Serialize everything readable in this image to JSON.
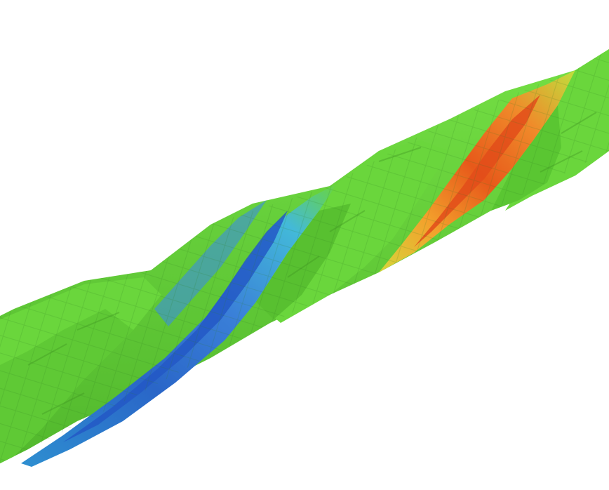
{
  "scene": {
    "subject": "twisted-beam-contour-plot",
    "background_color": "#ffffff",
    "colors": {
      "green": "#6ad63c",
      "green_dark": "#4fb52a",
      "green_shadow": "#3f9a22",
      "cyan": "#3fc2d6",
      "blue": "#2f7ad6",
      "blue_deep": "#2058c4",
      "yellow": "#d8d838",
      "orange": "#f08a2a",
      "red": "#e04a18"
    },
    "icons": {
      "mesh": "mesh-icon"
    }
  }
}
